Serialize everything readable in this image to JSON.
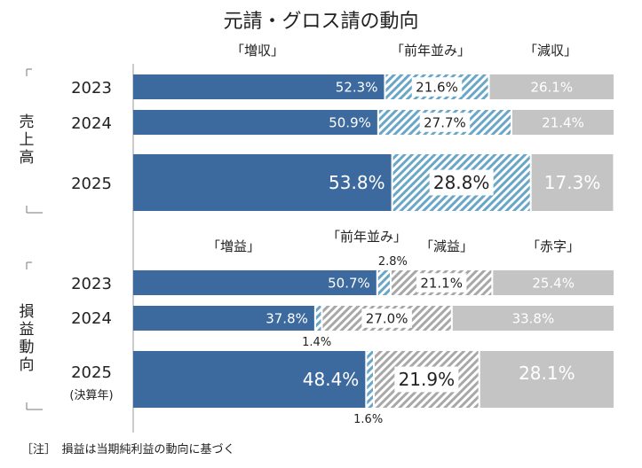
{
  "title": "元請・グロス請の動向",
  "note": "［注］　損益は当期純利益の動向に基づく",
  "colors": {
    "solid": "#3d6a9e",
    "hatch": "#6aa6c8",
    "hatch_gray": "#a8a8a8",
    "gray": "#c4c4c4"
  },
  "chart_data": [
    {
      "type": "bar",
      "stacked": true,
      "orientation": "horizontal",
      "group_label": "売上高",
      "categories": [
        "2023",
        "2024",
        "2025"
      ],
      "series": [
        {
          "name": "「増収」",
          "style": "solid",
          "values": [
            52.3,
            50.9,
            53.8
          ],
          "labels": [
            "52.3%",
            "50.9%",
            "53.8%"
          ]
        },
        {
          "name": "「前年並み」",
          "style": "hatch",
          "values": [
            21.6,
            27.7,
            28.8
          ],
          "labels": [
            "21.6%",
            "27.7%",
            "28.8%"
          ]
        },
        {
          "name": "「減収」",
          "style": "gray",
          "values": [
            26.1,
            21.4,
            17.3
          ],
          "labels": [
            "26.1%",
            "21.4%",
            "17.3%"
          ]
        }
      ],
      "xlim": [
        0,
        100
      ]
    },
    {
      "type": "bar",
      "stacked": true,
      "orientation": "horizontal",
      "group_label": "損益動向",
      "categories": [
        "2023",
        "2024",
        "2025"
      ],
      "category_sublabels": [
        "",
        "",
        "(決算年)"
      ],
      "series": [
        {
          "name": "「増益」",
          "style": "solid",
          "values": [
            50.7,
            37.8,
            48.4
          ],
          "labels": [
            "50.7%",
            "37.8%",
            "48.4%"
          ]
        },
        {
          "name": "「前年並み」",
          "style": "hatch",
          "values": [
            2.8,
            1.4,
            1.6
          ],
          "labels": [
            "2.8%",
            "1.4%",
            "1.6%"
          ]
        },
        {
          "name": "「減益」",
          "style": "hatch_gray",
          "values": [
            21.1,
            27.0,
            21.9
          ],
          "labels": [
            "21.1%",
            "27.0%",
            "21.9%"
          ]
        },
        {
          "name": "「赤字」",
          "style": "gray",
          "values": [
            25.4,
            33.8,
            28.1
          ],
          "labels": [
            "25.4%",
            "33.8%",
            "28.1%"
          ]
        }
      ],
      "xlim": [
        0,
        100
      ]
    }
  ]
}
